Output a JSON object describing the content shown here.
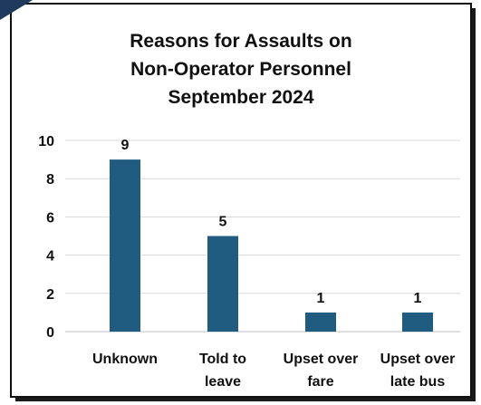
{
  "chart_data": {
    "type": "bar",
    "title_lines": [
      "Reasons for Assaults on",
      "Non-Operator Personnel",
      "September 2024"
    ],
    "categories": [
      [
        "Unknown"
      ],
      [
        "Told to",
        "leave"
      ],
      [
        "Upset over",
        "fare"
      ],
      [
        "Upset over",
        "late bus"
      ]
    ],
    "values": [
      9,
      5,
      1,
      1
    ],
    "ylim": [
      0,
      10
    ],
    "yticks": [
      0,
      2,
      4,
      6,
      8,
      10
    ],
    "grid": true,
    "bar_color": "#1f5c7f",
    "grid_color": "#d9d9d9"
  }
}
